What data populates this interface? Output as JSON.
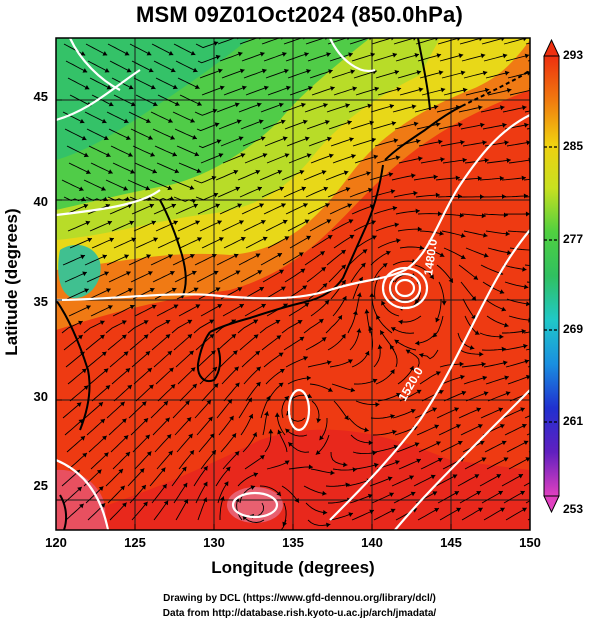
{
  "title": "MSM 09Z01Oct2024 (850.0hPa)",
  "axes": {
    "xlabel": "Longitude (degrees)",
    "ylabel": "Latitude  (degrees)",
    "x_ticks": [
      "120",
      "125",
      "130",
      "135",
      "140",
      "145",
      "150"
    ],
    "y_ticks": [
      "25",
      "30",
      "35",
      "40",
      "45"
    ]
  },
  "colorbar": {
    "ticks": [
      "293",
      "285",
      "277",
      "269",
      "261",
      "253"
    ],
    "range": [
      253,
      293
    ],
    "colors": [
      "#e040c0",
      "#6020c0",
      "#2030d0",
      "#1a8fe0",
      "#20c8c8",
      "#30c060",
      "#50d040",
      "#c8e020",
      "#f0d010",
      "#f07a10",
      "#ee3010"
    ]
  },
  "contours": {
    "labels": [
      "1480.0",
      "1520.0"
    ]
  },
  "credits": {
    "line1": "Drawing by DCL (https://www.gfd-dennou.org/library/dcl/)",
    "line2": "Data from http://database.rish.kyoto-u.ac.jp/arch/jmadata/"
  }
}
